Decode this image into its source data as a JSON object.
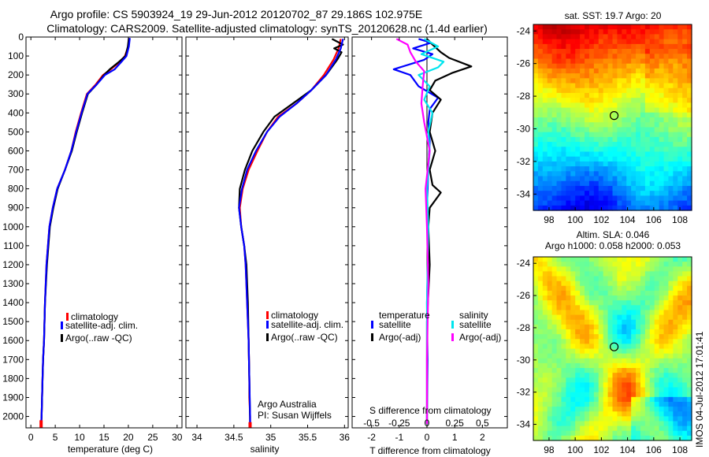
{
  "title_line1": "Argo profile: CS 5903924_19 29-Jun-2012 20120702_87 29.186S 102.975E",
  "title_line2": "Climatology: CARS2009. Satellite-adjusted climatology: synTS_20120628.nc (1.4d earlier)",
  "watermark": "IMOS 04-Jul-2012 17:01:41",
  "colors": {
    "red": "#ff0000",
    "blue": "#0000ff",
    "black": "#000000",
    "cyan": "#00e5ee",
    "magenta": "#ff00ff"
  },
  "depth_axis": {
    "ylim": [
      0,
      2060
    ],
    "ticks": [
      0,
      100,
      200,
      300,
      400,
      500,
      600,
      700,
      800,
      900,
      1000,
      1100,
      1200,
      1300,
      1400,
      1500,
      1600,
      1700,
      1800,
      1900,
      2000
    ]
  },
  "chart_data": [
    {
      "id": "temperature",
      "type": "line",
      "xlabel": "temperature (deg C)",
      "xlim": [
        -1,
        31
      ],
      "xticks": [
        0,
        5,
        10,
        15,
        20,
        25,
        30
      ],
      "legend": {
        "position": "lower-middle",
        "entries": [
          "climatology",
          "satellite-adj. clim.",
          "Argo(..raw -QC)"
        ]
      },
      "series": [
        {
          "name": "climatology",
          "color": "red",
          "x": [
            20.1,
            20.0,
            19.3,
            18.5,
            16.4,
            14.8,
            13.3,
            11.5,
            10.3,
            9.2,
            8.3,
            7.0,
            5.4,
            4.5,
            3.8,
            3.2,
            2.9,
            2.7,
            2.5,
            2.4,
            2.3,
            2.2,
            2.15,
            2.1
          ],
          "y": [
            5,
            50,
            100,
            125,
            170,
            200,
            250,
            300,
            400,
            500,
            600,
            700,
            800,
            900,
            1000,
            1200,
            1400,
            1600,
            1700,
            1800,
            1900,
            2000,
            2040,
            2060
          ]
        },
        {
          "name": "Argo(..raw -QC)",
          "color": "black",
          "x": [
            20.1,
            19.9,
            19.4,
            18.1,
            16.2,
            15.0,
            13.5,
            11.7,
            10.5,
            9.4,
            8.4,
            7.0,
            5.5,
            4.6,
            3.9,
            3.3,
            2.9,
            2.7,
            2.5,
            2.4,
            2.3,
            2.2,
            2.1
          ],
          "y": [
            5,
            50,
            100,
            130,
            170,
            200,
            250,
            300,
            400,
            500,
            600,
            700,
            800,
            900,
            1000,
            1200,
            1400,
            1600,
            1700,
            1800,
            1900,
            2000,
            2040
          ]
        },
        {
          "name": "satellite-adj. clim.",
          "color": "blue",
          "x": [
            20.3,
            20.1,
            19.6,
            18.6,
            17.2,
            15.2,
            13.5,
            11.6,
            10.4,
            9.3,
            8.3,
            7.0,
            5.4,
            4.5,
            3.8,
            3.2,
            2.9,
            2.7,
            2.5,
            2.4,
            2.3,
            2.2,
            2.1
          ],
          "y": [
            5,
            50,
            100,
            130,
            170,
            200,
            250,
            300,
            400,
            500,
            600,
            700,
            800,
            900,
            1000,
            1200,
            1400,
            1600,
            1700,
            1800,
            1900,
            2000,
            2040
          ]
        }
      ]
    },
    {
      "id": "salinity",
      "type": "line",
      "xlabel": "salinity",
      "xlim": [
        33.85,
        36.05
      ],
      "xticks": [
        34,
        34.5,
        35,
        35.5,
        36
      ],
      "annotation": [
        "Argo Australia",
        "PI: Susan Wijffels"
      ],
      "legend": {
        "position": "lower-right",
        "entries": [
          "climatology",
          "satellite-adj. clim.",
          "Argo(..raw -QC)"
        ]
      },
      "series": [
        {
          "name": "climatology",
          "color": "red",
          "x": [
            35.95,
            35.92,
            35.85,
            35.72,
            35.55,
            35.35,
            35.1,
            34.95,
            34.82,
            34.7,
            34.62,
            34.58,
            34.6,
            34.64,
            34.66,
            34.68,
            34.7,
            34.71,
            34.71,
            34.72,
            34.72
          ],
          "y": [
            10,
            60,
            120,
            200,
            280,
            350,
            420,
            500,
            600,
            700,
            800,
            900,
            1000,
            1100,
            1200,
            1400,
            1600,
            1800,
            1900,
            2000,
            2060
          ]
        },
        {
          "name": "Argo(..raw -QC)",
          "color": "black",
          "x": [
            35.83,
            35.98,
            35.86,
            35.96,
            35.9,
            35.75,
            35.55,
            35.3,
            35.05,
            34.9,
            34.75,
            34.65,
            34.58,
            34.57,
            34.6,
            34.64,
            34.67,
            34.69,
            34.7,
            34.71,
            34.72
          ],
          "y": [
            10,
            40,
            60,
            80,
            120,
            200,
            280,
            350,
            420,
            500,
            600,
            700,
            800,
            900,
            1000,
            1100,
            1200,
            1400,
            1600,
            1800,
            2040
          ]
        },
        {
          "name": "satellite-adj. clim.",
          "color": "blue",
          "x": [
            35.98,
            35.95,
            35.88,
            35.75,
            35.55,
            35.35,
            35.12,
            34.95,
            34.8,
            34.68,
            34.61,
            34.57,
            34.6,
            34.64,
            34.66,
            34.68,
            34.7,
            34.71,
            34.72,
            34.72
          ],
          "y": [
            10,
            60,
            120,
            200,
            280,
            350,
            420,
            500,
            600,
            700,
            800,
            900,
            1000,
            1100,
            1200,
            1400,
            1600,
            1800,
            2000,
            2040
          ]
        }
      ]
    },
    {
      "id": "difference",
      "type": "line",
      "xlabel": "T difference from climatology",
      "xlim": [
        -2.7,
        2.9
      ],
      "xticks": [
        -2,
        -1,
        0,
        1,
        2
      ],
      "top_xlabel": "S difference from climatology",
      "top_ticks": [
        {
          "label": "-0.5",
          "tpos": -2.0
        },
        {
          "label": "-0.25",
          "tpos": -1.0
        },
        {
          "label": "0",
          "tpos": 0
        },
        {
          "label": "0.25",
          "tpos": 1.0
        },
        {
          "label": "0.5",
          "tpos": 2.0
        }
      ],
      "legend": {
        "position": "lower-middle",
        "temperature_heading": "temperature",
        "salinity_heading": "salinity",
        "entries": [
          "satellite",
          "Argo(-adj)",
          "satellite",
          "Argo(-adj)"
        ]
      },
      "series": [
        {
          "name": "temperature satellite",
          "color": "blue",
          "x": [
            -0.3,
            0.15,
            -0.5,
            0.2,
            -0.1,
            -1.2,
            -0.6,
            -0.3,
            0.4,
            0.1,
            0.05,
            0.1,
            0.05,
            0.0,
            0.05,
            0.0,
            0.02,
            0.0,
            0.0
          ],
          "y": [
            10,
            30,
            60,
            90,
            120,
            170,
            200,
            260,
            320,
            380,
            450,
            550,
            700,
            900,
            1100,
            1400,
            1700,
            2000,
            2040
          ]
        },
        {
          "name": "temperature Argo(-adj)",
          "color": "black",
          "x": [
            0.0,
            0.2,
            0.5,
            0.8,
            1.6,
            0.9,
            0.3,
            0.1,
            0.5,
            0.2,
            0.1,
            0.3,
            0.1,
            0.2,
            0.5,
            0.1,
            0.05,
            0.1,
            0.0,
            0.0,
            0.0
          ],
          "y": [
            10,
            40,
            80,
            110,
            155,
            190,
            230,
            280,
            330,
            400,
            500,
            600,
            700,
            780,
            820,
            900,
            1000,
            1200,
            1500,
            1800,
            2040
          ]
        },
        {
          "name": "salinity satellite",
          "color": "cyan",
          "x": [
            -0.1,
            0.4,
            -0.2,
            0.6,
            0.4,
            -0.3,
            0.1,
            -0.1,
            0.2,
            0.05,
            0.1,
            0.0,
            0.05,
            0.0,
            0.0,
            0.0
          ],
          "y": [
            10,
            50,
            90,
            130,
            160,
            200,
            260,
            330,
            400,
            500,
            600,
            800,
            1000,
            1400,
            1800,
            2040
          ]
        },
        {
          "name": "salinity Argo(-adj)",
          "color": "magenta",
          "x": [
            -1.1,
            -0.7,
            -0.6,
            -0.4,
            -0.1,
            -0.15,
            -0.2,
            -0.1,
            0.1,
            -0.05,
            0.0,
            0.05,
            0.0,
            0.0
          ],
          "y": [
            10,
            40,
            80,
            130,
            180,
            250,
            350,
            450,
            600,
            800,
            1000,
            1300,
            1700,
            2040
          ]
        }
      ]
    },
    {
      "id": "sst_map",
      "type": "heatmap",
      "title": "sat. SST: 19.7 Argo: 20",
      "xlim": [
        96.8,
        108.9
      ],
      "ylim": [
        -35.0,
        -23.6
      ],
      "xticks": [
        98,
        100,
        102,
        104,
        106,
        108
      ],
      "yticks": [
        -24,
        -26,
        -28,
        -30,
        -32,
        -34
      ],
      "marker": {
        "lon": 102.975,
        "lat": -29.186
      },
      "colormap_range": [
        -2,
        2
      ],
      "field": {
        "kind": "sst",
        "base": 3.0,
        "gradient": 0.42,
        "waves": [
          [
            0.6,
            0.9,
            0.3
          ],
          [
            0.45,
            1.3,
            1.2
          ],
          [
            0.3,
            2.1,
            0.7
          ]
        ]
      }
    },
    {
      "id": "sla_map",
      "type": "heatmap",
      "title_line1": "Altim. SLA: 0.046",
      "title_line2": "Argo h1000: 0.058 h2000: 0.053",
      "xlim": [
        96.8,
        108.9
      ],
      "ylim": [
        -35.0,
        -23.6
      ],
      "xticks": [
        98,
        100,
        102,
        104,
        106,
        108
      ],
      "yticks": [
        -24,
        -26,
        -28,
        -30,
        -32,
        -34
      ],
      "marker": {
        "lon": 102.975,
        "lat": -29.186
      },
      "colormap_range": [
        -2,
        2
      ],
      "field": {
        "kind": "sla",
        "base": 0.1,
        "gradient": 0.0,
        "waves": [
          [
            0.9,
            1.6,
            0.2
          ],
          [
            0.7,
            2.2,
            1.5
          ],
          [
            0.5,
            3.1,
            2.4
          ]
        ]
      }
    }
  ]
}
